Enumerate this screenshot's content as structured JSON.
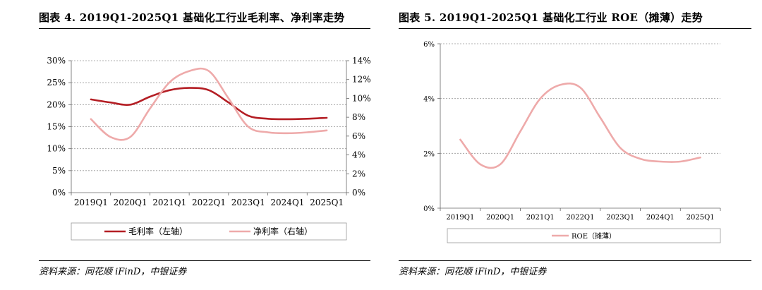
{
  "left_panel": {
    "title": "图表 4. 2019Q1-2025Q1 基础化工行业毛利率、净利率走势",
    "source": "资料来源：同花顺 iFinD，中银证券"
  },
  "right_panel": {
    "title": "图表 5. 2019Q1-2025Q1 基础化工行业 ROE（摊薄）走势",
    "source": "资料来源：同花顺 iFinD，中银证券"
  },
  "colors": {
    "dark_red": "#b41e24",
    "pink": "#eeaaaa",
    "grid": "#999999",
    "axis": "#666666"
  },
  "chart_data": [
    {
      "type": "line",
      "categories": [
        "2019Q1",
        "2020Q1",
        "2021Q1",
        "2022Q1",
        "2023Q1",
        "2024Q1",
        "2025Q1"
      ],
      "x": [
        0,
        1,
        2,
        3,
        4,
        5,
        6
      ],
      "left_axis": {
        "ticks": [
          "0%",
          "5%",
          "10%",
          "15%",
          "20%",
          "25%",
          "30%"
        ],
        "ylim": [
          0,
          30
        ]
      },
      "right_axis": {
        "ticks": [
          "0%",
          "2%",
          "4%",
          "6%",
          "8%",
          "10%",
          "12%",
          "14%"
        ],
        "ylim": [
          0,
          14
        ]
      },
      "grid": true,
      "legend_position": "bottom",
      "series": [
        {
          "name": "毛利率（左轴）",
          "axis": "left",
          "color": "#b41e24",
          "x": [
            0,
            0.5,
            1,
            1.5,
            2,
            2.5,
            3,
            3.5,
            4,
            4.5,
            5,
            5.5,
            6
          ],
          "values": [
            21.2,
            20.5,
            20.0,
            21.8,
            23.3,
            23.8,
            23.3,
            20.5,
            17.5,
            16.8,
            16.7,
            16.8,
            17.0
          ]
        },
        {
          "name": "净利率（右轴）",
          "axis": "right",
          "color": "#eeaaaa",
          "x": [
            0,
            0.5,
            1,
            1.5,
            2,
            2.5,
            3,
            3.5,
            4,
            4.5,
            5,
            5.5,
            6
          ],
          "values": [
            7.8,
            5.9,
            5.9,
            8.9,
            11.7,
            12.9,
            12.9,
            10.0,
            7.0,
            6.4,
            6.3,
            6.4,
            6.6
          ]
        }
      ]
    },
    {
      "type": "line",
      "categories": [
        "2019Q1",
        "2020Q1",
        "2021Q1",
        "2022Q1",
        "2023Q1",
        "2024Q1",
        "2025Q1"
      ],
      "x": [
        0,
        1,
        2,
        3,
        4,
        5,
        6
      ],
      "left_axis": {
        "ticks": [
          "0%",
          "2%",
          "4%",
          "6%"
        ],
        "ylim": [
          0,
          6
        ]
      },
      "grid": true,
      "legend_position": "bottom",
      "series": [
        {
          "name": "ROE（摊薄）",
          "axis": "left",
          "color": "#eeaaaa",
          "x": [
            0,
            0.5,
            1,
            1.5,
            2,
            2.5,
            3,
            3.5,
            4,
            4.5,
            5,
            5.5,
            6
          ],
          "values": [
            2.5,
            1.6,
            1.6,
            2.8,
            4.0,
            4.5,
            4.4,
            3.3,
            2.2,
            1.8,
            1.7,
            1.7,
            1.85
          ]
        }
      ]
    }
  ]
}
